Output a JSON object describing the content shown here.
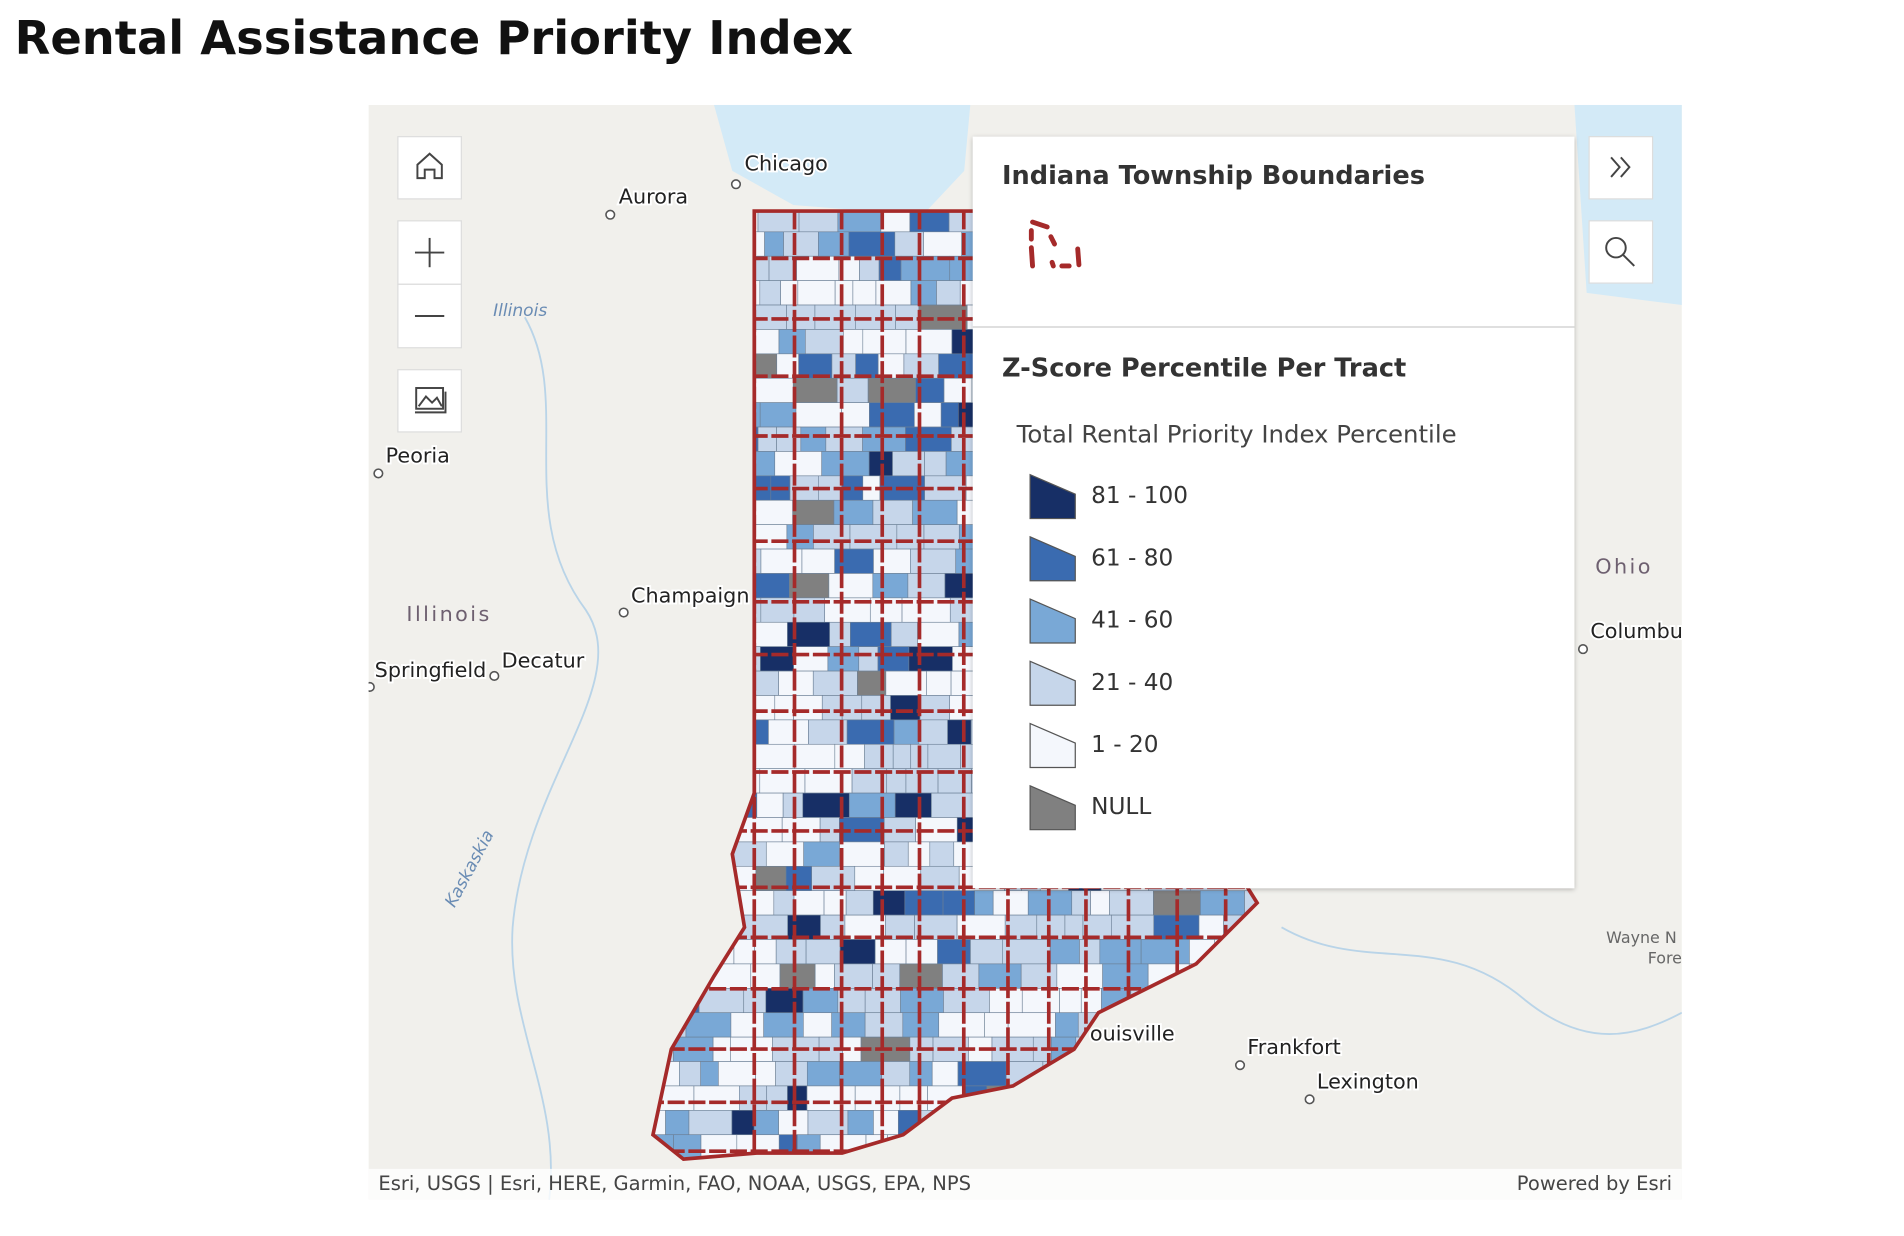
{
  "header": {
    "title": "Rental Assistance Priority Index"
  },
  "map": {
    "place_labels": [
      "Chicago",
      "Aurora",
      "Peoria",
      "Champaign",
      "Springfield",
      "Decatur",
      "Frankfort",
      "Lexington",
      "Columbu",
      "ouisville"
    ],
    "region_labels": [
      "Illinois",
      "Ohio"
    ],
    "water_labels": [
      "Illinois",
      "Kaskaskia"
    ],
    "minor_labels": [
      "Wayne N",
      "Fore"
    ],
    "attribution": "Esri, USGS | Esri, HERE, Garmin, FAO, NOAA, USGS, EPA, NPS",
    "powered_by": "Powered by Esri",
    "legend": {
      "boundary_layer": {
        "title": "Indiana Township Boundaries",
        "color": "#a52a2a"
      },
      "tract_layer": {
        "title": "Z-Score Percentile Per Tract",
        "field": "Total Rental Priority Index Percentile",
        "classes": [
          {
            "label": "81 - 100",
            "color": "#172f66"
          },
          {
            "label": "61 - 80",
            "color": "#3a6bb0"
          },
          {
            "label": "41 - 60",
            "color": "#79a8d6"
          },
          {
            "label": "21 - 40",
            "color": "#c6d6ea"
          },
          {
            "label": "1 - 20",
            "color": "#f4f7fc"
          },
          {
            "label": "NULL",
            "color": "#808080"
          }
        ]
      }
    }
  }
}
